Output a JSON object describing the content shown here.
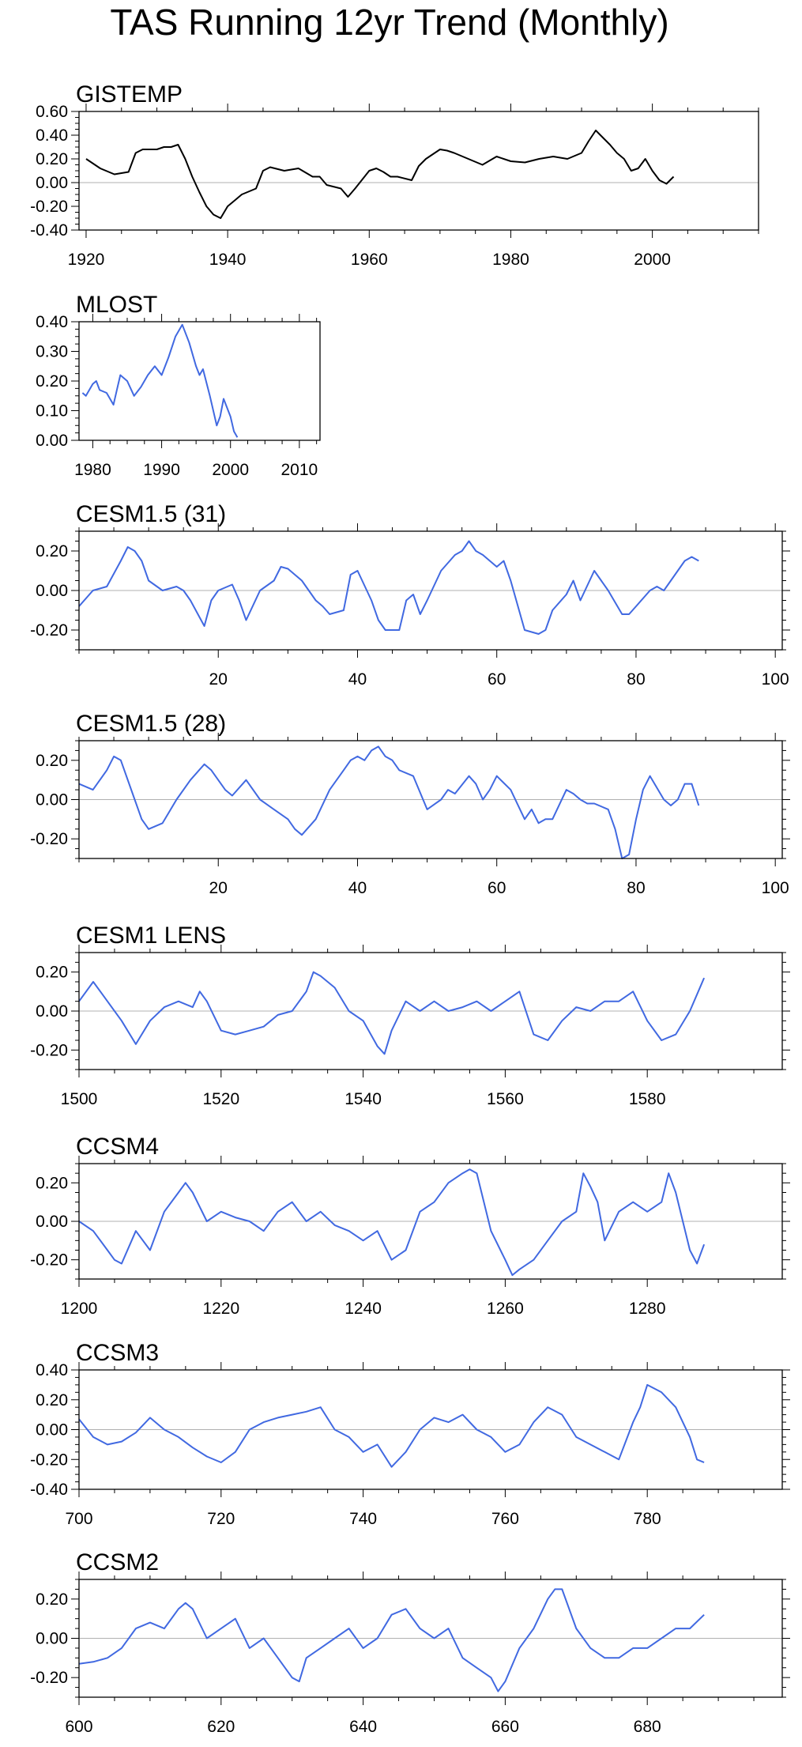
{
  "figure_title": "TAS Running 12yr Trend (Monthly)",
  "chart_data": [
    {
      "type": "line",
      "title": "GISTEMP",
      "line_color": "#000000",
      "xlim": [
        1919,
        2015
      ],
      "ylim": [
        -0.4,
        0.6
      ],
      "xticks": [
        "1920",
        "1940",
        "1960",
        "1980",
        "2000"
      ],
      "xtick_values": [
        1920,
        1940,
        1960,
        1980,
        2000
      ],
      "yticks": [
        "0.60",
        "0.40",
        "0.20",
        "0.00",
        "-0.20",
        "-0.40"
      ],
      "ytick_values": [
        0.6,
        0.4,
        0.2,
        0.0,
        -0.2,
        -0.4
      ],
      "ytick_left": true,
      "ytick_right": false,
      "x": [
        1920,
        1922,
        1924,
        1926,
        1927,
        1928,
        1930,
        1931,
        1932,
        1933,
        1934,
        1935,
        1936,
        1937,
        1938,
        1939,
        1940,
        1941,
        1942,
        1944,
        1945,
        1946,
        1948,
        1950,
        1952,
        1953,
        1954,
        1956,
        1957,
        1958,
        1960,
        1961,
        1962,
        1963,
        1964,
        1966,
        1967,
        1968,
        1970,
        1971,
        1972,
        1974,
        1976,
        1978,
        1980,
        1982,
        1984,
        1986,
        1988,
        1990,
        1991,
        1992,
        1993,
        1994,
        1995,
        1996,
        1997,
        1998,
        1999,
        2000,
        2001,
        2002,
        2003
      ],
      "y": [
        0.2,
        0.12,
        0.07,
        0.09,
        0.25,
        0.28,
        0.28,
        0.3,
        0.3,
        0.32,
        0.2,
        0.05,
        -0.08,
        -0.2,
        -0.27,
        -0.3,
        -0.2,
        -0.15,
        -0.1,
        -0.05,
        0.1,
        0.13,
        0.1,
        0.12,
        0.05,
        0.05,
        -0.02,
        -0.05,
        -0.12,
        -0.05,
        0.1,
        0.12,
        0.09,
        0.05,
        0.05,
        0.02,
        0.14,
        0.2,
        0.28,
        0.27,
        0.25,
        0.2,
        0.15,
        0.22,
        0.18,
        0.17,
        0.2,
        0.22,
        0.2,
        0.25,
        0.35,
        0.44,
        0.38,
        0.32,
        0.25,
        0.2,
        0.1,
        0.12,
        0.2,
        0.1,
        0.02,
        -0.01,
        0.05
      ]
    },
    {
      "type": "line",
      "title": "MLOST",
      "line_color": "#4169e1",
      "xlim": [
        1978,
        2013
      ],
      "ylim": [
        0.0,
        0.4
      ],
      "xticks": [
        "1980",
        "1990",
        "2000",
        "2010"
      ],
      "xtick_values": [
        1980,
        1990,
        2000,
        2010
      ],
      "yticks": [
        "0.40",
        "0.30",
        "0.20",
        "0.10",
        "0.00"
      ],
      "ytick_values": [
        0.4,
        0.3,
        0.2,
        0.1,
        0.0
      ],
      "ytick_left": true,
      "ytick_right": false,
      "x": [
        1978.5,
        1979,
        1980,
        1980.5,
        1981,
        1982,
        1983,
        1983.5,
        1984,
        1985,
        1986,
        1987,
        1988,
        1989,
        1990,
        1991,
        1992,
        1993,
        1994,
        1995,
        1995.5,
        1996,
        1997,
        1998,
        1998.5,
        1999,
        2000,
        2000.5,
        2001
      ],
      "y": [
        0.16,
        0.15,
        0.19,
        0.2,
        0.17,
        0.16,
        0.12,
        0.17,
        0.22,
        0.2,
        0.15,
        0.18,
        0.22,
        0.25,
        0.22,
        0.28,
        0.35,
        0.39,
        0.33,
        0.25,
        0.22,
        0.24,
        0.15,
        0.05,
        0.08,
        0.14,
        0.08,
        0.03,
        0.01
      ]
    },
    {
      "type": "line",
      "title": "CESM1.5 (31)",
      "line_color": "#4169e1",
      "xlim": [
        0,
        101
      ],
      "ylim": [
        -0.3,
        0.3
      ],
      "xticks": [
        "20",
        "40",
        "60",
        "80",
        "100"
      ],
      "xtick_values": [
        20,
        40,
        60,
        80,
        100
      ],
      "yticks": [
        "0.20",
        "0.00",
        "-0.20"
      ],
      "ytick_values": [
        0.2,
        0.0,
        -0.2
      ],
      "ytick_left": true,
      "ytick_right": true,
      "x": [
        0,
        2,
        4,
        6,
        7,
        8,
        9,
        10,
        12,
        14,
        15,
        16,
        18,
        19,
        20,
        22,
        23,
        24,
        26,
        28,
        29,
        30,
        31,
        32,
        34,
        35,
        36,
        38,
        39,
        40,
        42,
        43,
        44,
        46,
        47,
        48,
        49,
        50,
        52,
        54,
        55,
        56,
        57,
        58,
        59,
        60,
        61,
        62,
        64,
        66,
        67,
        68,
        70,
        71,
        72,
        74,
        75,
        76,
        78,
        79,
        80,
        82,
        83,
        84,
        86,
        87,
        88,
        89
      ],
      "y": [
        -0.08,
        0.0,
        0.02,
        0.15,
        0.22,
        0.2,
        0.15,
        0.05,
        0.0,
        0.02,
        0.0,
        -0.05,
        -0.18,
        -0.05,
        0.0,
        0.03,
        -0.05,
        -0.15,
        0.0,
        0.05,
        0.12,
        0.11,
        0.08,
        0.05,
        -0.05,
        -0.08,
        -0.12,
        -0.1,
        0.08,
        0.1,
        -0.05,
        -0.15,
        -0.2,
        -0.2,
        -0.05,
        -0.02,
        -0.12,
        -0.05,
        0.1,
        0.18,
        0.2,
        0.25,
        0.2,
        0.18,
        0.15,
        0.12,
        0.15,
        0.05,
        -0.2,
        -0.22,
        -0.2,
        -0.1,
        -0.02,
        0.05,
        -0.05,
        0.1,
        0.05,
        0.0,
        -0.12,
        -0.12,
        -0.08,
        0.0,
        0.02,
        0.0,
        0.1,
        0.15,
        0.17,
        0.15
      ]
    },
    {
      "type": "line",
      "title": "CESM1.5 (28)",
      "line_color": "#4169e1",
      "xlim": [
        0,
        101
      ],
      "ylim": [
        -0.3,
        0.3
      ],
      "xticks": [
        "20",
        "40",
        "60",
        "80",
        "100"
      ],
      "xtick_values": [
        20,
        40,
        60,
        80,
        100
      ],
      "yticks": [
        "0.20",
        "0.00",
        "-0.20"
      ],
      "ytick_values": [
        0.2,
        0.0,
        -0.2
      ],
      "ytick_left": true,
      "ytick_right": true,
      "x": [
        0,
        2,
        4,
        5,
        6,
        8,
        9,
        10,
        12,
        14,
        16,
        18,
        19,
        20,
        21,
        22,
        24,
        26,
        28,
        30,
        31,
        32,
        34,
        36,
        38,
        39,
        40,
        41,
        42,
        43,
        44,
        45,
        46,
        48,
        50,
        52,
        53,
        54,
        56,
        57,
        58,
        59,
        60,
        62,
        64,
        65,
        66,
        67,
        68,
        70,
        71,
        72,
        73,
        74,
        76,
        77,
        78,
        79,
        80,
        81,
        82,
        84,
        85,
        86,
        87,
        88,
        89
      ],
      "y": [
        0.08,
        0.05,
        0.15,
        0.22,
        0.2,
        0.0,
        -0.1,
        -0.15,
        -0.12,
        0.0,
        0.1,
        0.18,
        0.15,
        0.1,
        0.05,
        0.02,
        0.1,
        0.0,
        -0.05,
        -0.1,
        -0.15,
        -0.18,
        -0.1,
        0.05,
        0.15,
        0.2,
        0.22,
        0.2,
        0.25,
        0.27,
        0.22,
        0.2,
        0.15,
        0.12,
        -0.05,
        0.0,
        0.05,
        0.03,
        0.12,
        0.08,
        0.0,
        0.05,
        0.12,
        0.05,
        -0.1,
        -0.05,
        -0.12,
        -0.1,
        -0.1,
        0.05,
        0.03,
        0.0,
        -0.02,
        -0.02,
        -0.05,
        -0.15,
        -0.3,
        -0.28,
        -0.1,
        0.05,
        0.12,
        0.0,
        -0.03,
        0.0,
        0.08,
        0.08,
        -0.03
      ]
    },
    {
      "type": "line",
      "title": "CESM1 LENS",
      "line_color": "#4169e1",
      "xlim": [
        1500,
        1599
      ],
      "ylim": [
        -0.3,
        0.3
      ],
      "xticks": [
        "1500",
        "1520",
        "1540",
        "1560",
        "1580"
      ],
      "xtick_values": [
        1500,
        1520,
        1540,
        1560,
        1580
      ],
      "yticks": [
        "0.20",
        "0.00",
        "-0.20"
      ],
      "ytick_values": [
        0.2,
        0.0,
        -0.2
      ],
      "ytick_left": true,
      "ytick_right": true,
      "x": [
        1500,
        1502,
        1504,
        1506,
        1508,
        1510,
        1512,
        1514,
        1516,
        1517,
        1518,
        1520,
        1522,
        1524,
        1526,
        1528,
        1530,
        1532,
        1533,
        1534,
        1536,
        1538,
        1540,
        1542,
        1543,
        1544,
        1546,
        1548,
        1550,
        1552,
        1554,
        1556,
        1558,
        1560,
        1562,
        1564,
        1566,
        1568,
        1570,
        1572,
        1574,
        1576,
        1578,
        1580,
        1582,
        1584,
        1586,
        1588
      ],
      "y": [
        0.05,
        0.15,
        0.05,
        -0.05,
        -0.17,
        -0.05,
        0.02,
        0.05,
        0.02,
        0.1,
        0.05,
        -0.1,
        -0.12,
        -0.1,
        -0.08,
        -0.02,
        0.0,
        0.1,
        0.2,
        0.18,
        0.12,
        0.0,
        -0.05,
        -0.18,
        -0.22,
        -0.1,
        0.05,
        0.0,
        0.05,
        0.0,
        0.02,
        0.05,
        0.0,
        0.05,
        0.1,
        -0.12,
        -0.15,
        -0.05,
        0.02,
        0.0,
        0.05,
        0.05,
        0.1,
        -0.05,
        -0.15,
        -0.12,
        0.0,
        0.17
      ]
    },
    {
      "type": "line",
      "title": "CCSM4",
      "line_color": "#4169e1",
      "xlim": [
        1200,
        1299
      ],
      "ylim": [
        -0.3,
        0.3
      ],
      "xticks": [
        "1200",
        "1220",
        "1240",
        "1260",
        "1280"
      ],
      "xtick_values": [
        1200,
        1220,
        1240,
        1260,
        1280
      ],
      "yticks": [
        "0.20",
        "0.00",
        "-0.20"
      ],
      "ytick_values": [
        0.2,
        0.0,
        -0.2
      ],
      "ytick_left": true,
      "ytick_right": true,
      "x": [
        1200,
        1202,
        1204,
        1205,
        1206,
        1208,
        1210,
        1212,
        1214,
        1215,
        1216,
        1218,
        1220,
        1222,
        1224,
        1226,
        1228,
        1230,
        1232,
        1234,
        1236,
        1238,
        1240,
        1242,
        1244,
        1246,
        1248,
        1250,
        1252,
        1254,
        1255,
        1256,
        1258,
        1260,
        1261,
        1262,
        1264,
        1266,
        1268,
        1270,
        1271,
        1272,
        1273,
        1274,
        1276,
        1278,
        1280,
        1282,
        1283,
        1284,
        1286,
        1287,
        1288
      ],
      "y": [
        0.0,
        -0.05,
        -0.15,
        -0.2,
        -0.22,
        -0.05,
        -0.15,
        0.05,
        0.15,
        0.2,
        0.15,
        0.0,
        0.05,
        0.02,
        0.0,
        -0.05,
        0.05,
        0.1,
        0.0,
        0.05,
        -0.02,
        -0.05,
        -0.1,
        -0.05,
        -0.2,
        -0.15,
        0.05,
        0.1,
        0.2,
        0.25,
        0.27,
        0.25,
        -0.05,
        -0.2,
        -0.28,
        -0.25,
        -0.2,
        -0.1,
        0.0,
        0.05,
        0.25,
        0.18,
        0.1,
        -0.1,
        0.05,
        0.1,
        0.05,
        0.1,
        0.25,
        0.15,
        -0.15,
        -0.22,
        -0.12
      ]
    },
    {
      "type": "line",
      "title": "CCSM3",
      "line_color": "#4169e1",
      "xlim": [
        700,
        799
      ],
      "ylim": [
        -0.4,
        0.4
      ],
      "xticks": [
        "700",
        "720",
        "740",
        "760",
        "780"
      ],
      "xtick_values": [
        700,
        720,
        740,
        760,
        780
      ],
      "yticks": [
        "0.40",
        "0.20",
        "0.00",
        "-0.20",
        "-0.40"
      ],
      "ytick_values": [
        0.4,
        0.2,
        0.0,
        -0.2,
        -0.4
      ],
      "ytick_left": true,
      "ytick_right": true,
      "x": [
        700,
        702,
        704,
        706,
        708,
        710,
        712,
        714,
        716,
        718,
        720,
        722,
        724,
        726,
        728,
        730,
        732,
        734,
        736,
        738,
        740,
        742,
        744,
        746,
        748,
        750,
        752,
        754,
        756,
        758,
        760,
        762,
        764,
        766,
        768,
        770,
        772,
        774,
        776,
        778,
        779,
        780,
        782,
        784,
        786,
        787,
        788
      ],
      "y": [
        0.07,
        -0.05,
        -0.1,
        -0.08,
        -0.02,
        0.08,
        0.0,
        -0.05,
        -0.12,
        -0.18,
        -0.22,
        -0.15,
        0.0,
        0.05,
        0.08,
        0.1,
        0.12,
        0.15,
        0.0,
        -0.05,
        -0.15,
        -0.1,
        -0.25,
        -0.15,
        0.0,
        0.08,
        0.05,
        0.1,
        0.0,
        -0.05,
        -0.15,
        -0.1,
        0.05,
        0.15,
        0.1,
        -0.05,
        -0.1,
        -0.15,
        -0.2,
        0.05,
        0.15,
        0.3,
        0.25,
        0.15,
        -0.05,
        -0.2,
        -0.22
      ]
    },
    {
      "type": "line",
      "title": "CCSM2",
      "line_color": "#4169e1",
      "xlim": [
        600,
        699
      ],
      "ylim": [
        -0.3,
        0.3
      ],
      "xticks": [
        "600",
        "620",
        "640",
        "660",
        "680"
      ],
      "xtick_values": [
        600,
        620,
        640,
        660,
        680
      ],
      "yticks": [
        "0.20",
        "0.00",
        "-0.20"
      ],
      "ytick_values": [
        0.2,
        0.0,
        -0.2
      ],
      "ytick_left": true,
      "ytick_right": true,
      "x": [
        600,
        602,
        604,
        606,
        608,
        610,
        612,
        614,
        615,
        616,
        618,
        620,
        622,
        624,
        626,
        628,
        630,
        631,
        632,
        634,
        636,
        638,
        640,
        642,
        644,
        646,
        648,
        650,
        652,
        654,
        656,
        658,
        659,
        660,
        662,
        664,
        666,
        667,
        668,
        670,
        672,
        674,
        676,
        678,
        680,
        682,
        684,
        686,
        688
      ],
      "y": [
        -0.13,
        -0.12,
        -0.1,
        -0.05,
        0.05,
        0.08,
        0.05,
        0.15,
        0.18,
        0.15,
        0.0,
        0.05,
        0.1,
        -0.05,
        0.0,
        -0.1,
        -0.2,
        -0.22,
        -0.1,
        -0.05,
        0.0,
        0.05,
        -0.05,
        0.0,
        0.12,
        0.15,
        0.05,
        0.0,
        0.05,
        -0.1,
        -0.15,
        -0.2,
        -0.27,
        -0.22,
        -0.05,
        0.05,
        0.2,
        0.25,
        0.25,
        0.05,
        -0.05,
        -0.1,
        -0.1,
        -0.05,
        -0.05,
        0.0,
        0.05,
        0.05,
        0.12
      ]
    }
  ]
}
